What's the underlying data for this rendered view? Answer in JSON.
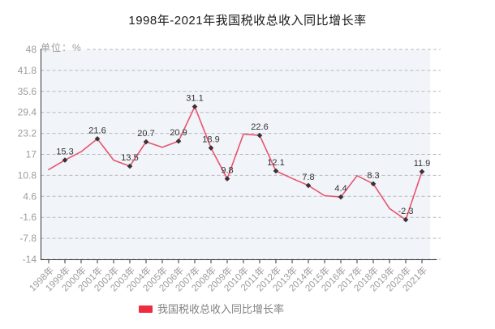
{
  "title": "1998年-2021年我国税收总收入同比增长率",
  "unit_label": "单位：%",
  "legend": {
    "label": "我国税收总收入同比增长率"
  },
  "colors": {
    "line": "#e7556e",
    "legend_swatch": "#ee2b3f",
    "marker": "#3a3134",
    "grid": "#b9b9bb",
    "axis": "#333333",
    "tick_label": "#9c9c9c",
    "data_label": "#333333",
    "plot_bg": "#f1f4f9",
    "title_color": "#1a1a1a",
    "legend_text": "#828282"
  },
  "chart_data": {
    "type": "line",
    "title": "1998年-2021年我国税收总收入同比增长率",
    "series_name": "我国税收总收入同比增长率",
    "xlabel": "",
    "ylabel": "单位：%",
    "categories": [
      "1998年",
      "1999年",
      "2000年",
      "2001年",
      "2002年",
      "2003年",
      "2004年",
      "2005年",
      "2006年",
      "2007年",
      "2008年",
      "2009年",
      "2010年",
      "2011年",
      "2012年",
      "2013年",
      "2014年",
      "2015年",
      "2016年",
      "2017年",
      "2018年",
      "2019年",
      "2020年",
      "2021年"
    ],
    "values": [
      12.5,
      15.3,
      17.8,
      21.6,
      15.3,
      13.5,
      20.7,
      19.1,
      20.9,
      31.1,
      18.9,
      9.8,
      23.0,
      22.6,
      12.1,
      9.9,
      7.8,
      4.8,
      4.4,
      10.7,
      8.3,
      1.0,
      -2.3,
      11.9
    ],
    "data_labels": [
      null,
      "15.3",
      null,
      "21.6",
      null,
      "13.5",
      "20.7",
      null,
      "20.9",
      "31.1",
      "18.9",
      "9.8",
      null,
      "22.6",
      "12.1",
      null,
      "7.8",
      null,
      "4.4",
      null,
      "8.3",
      null,
      "-2.3",
      "11.9"
    ],
    "y_ticks": [
      48,
      41.8,
      35.6,
      29.4,
      23.2,
      17,
      10.8,
      4.6,
      -1.6,
      -7.8,
      -14
    ],
    "ylim": [
      -14,
      48
    ],
    "grid": "dashed-horizontal",
    "legend_position": "bottom",
    "marker_shape": "diamond"
  }
}
